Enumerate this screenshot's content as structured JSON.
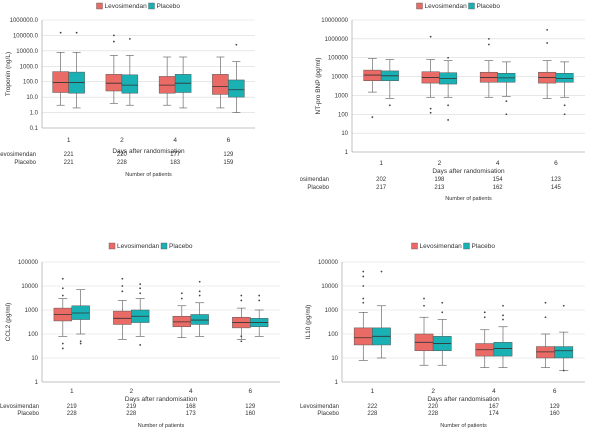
{
  "colors": {
    "levosimendan": "#ea6b66",
    "placebo": "#1ab1b4",
    "line": "#555555",
    "grid": "#d9d9d9"
  },
  "chart_data": [
    {
      "type": "boxplot",
      "ylabel": "Troponin (ng/L)",
      "xlabel": "Days after randomisation",
      "yscale": "log",
      "ylim": [
        0.1,
        1000000
      ],
      "yticks": [
        "0.1",
        "1.0",
        "10.0",
        "100.0",
        "1000.0",
        "10000.0",
        "100000.0",
        "1000000.0"
      ],
      "categories": [
        "1",
        "2",
        "4",
        "6"
      ],
      "legend": [
        "Levosimendan",
        "Placebo"
      ],
      "series": [
        {
          "name": "Levosimendan",
          "boxes": [
            {
              "min": 3,
              "q1": 20,
              "median": 90,
              "q3": 450,
              "max": 8000,
              "outliers": [
                150000
              ]
            },
            {
              "min": 4,
              "q1": 25,
              "median": 80,
              "q3": 300,
              "max": 5000,
              "outliers": [
                100000,
                40000
              ]
            },
            {
              "min": 3,
              "q1": 18,
              "median": 60,
              "q3": 220,
              "max": 4000,
              "outliers": []
            },
            {
              "min": 2,
              "q1": 15,
              "median": 50,
              "q3": 300,
              "max": 4000,
              "outliers": []
            }
          ]
        },
        {
          "name": "Placebo",
          "boxes": [
            {
              "min": 2,
              "q1": 18,
              "median": 90,
              "q3": 420,
              "max": 8000,
              "outliers": [
                150000
              ]
            },
            {
              "min": 3,
              "q1": 18,
              "median": 60,
              "q3": 280,
              "max": 5000,
              "outliers": [
                60000
              ]
            },
            {
              "min": 2,
              "q1": 20,
              "median": 80,
              "q3": 300,
              "max": 4000,
              "outliers": []
            },
            {
              "min": 1,
              "q1": 10,
              "median": 30,
              "q3": 130,
              "max": 2000,
              "outliers": [
                25000
              ]
            }
          ]
        }
      ],
      "counts_label": "Number of patients",
      "counts": [
        {
          "name": "Levosimendan",
          "values": [
            "221",
            "220",
            "177",
            "129"
          ]
        },
        {
          "name": "Placebo",
          "values": [
            "221",
            "228",
            "183",
            "159"
          ]
        }
      ]
    },
    {
      "type": "boxplot",
      "ylabel": "NT-pro BNP (pg/ml)",
      "xlabel": "Days after randomisation",
      "yscale": "log",
      "ylim": [
        1,
        10000000
      ],
      "yticks": [
        "1",
        "10",
        "100",
        "1000",
        "10000",
        "100000",
        "1000000",
        "10000000"
      ],
      "categories": [
        "1",
        "2",
        "4",
        "6"
      ],
      "legend": [
        "Levosimendan",
        "Placebo"
      ],
      "series": [
        {
          "name": "Levosimendan",
          "boxes": [
            {
              "min": 1500,
              "q1": 6000,
              "median": 12000,
              "q3": 22000,
              "max": 90000,
              "outliers": [
                70
              ]
            },
            {
              "min": 800,
              "q1": 4500,
              "median": 9000,
              "q3": 18000,
              "max": 80000,
              "outliers": [
                1300000,
                200,
                120
              ]
            },
            {
              "min": 800,
              "q1": 5000,
              "median": 9000,
              "q3": 17000,
              "max": 70000,
              "outliers": [
                1000000,
                500000
              ]
            },
            {
              "min": 700,
              "q1": 4500,
              "median": 9000,
              "q3": 17000,
              "max": 70000,
              "outliers": [
                3000000,
                600000
              ]
            }
          ]
        },
        {
          "name": "Placebo",
          "boxes": [
            {
              "min": 700,
              "q1": 6000,
              "median": 11000,
              "q3": 20000,
              "max": 80000,
              "outliers": [
                300
              ]
            },
            {
              "min": 800,
              "q1": 4000,
              "median": 8000,
              "q3": 16000,
              "max": 70000,
              "outliers": [
                100000,
                300,
                50
              ]
            },
            {
              "min": 900,
              "q1": 5000,
              "median": 8500,
              "q3": 15000,
              "max": 60000,
              "outliers": [
                100,
                500
              ]
            },
            {
              "min": 800,
              "q1": 5000,
              "median": 8000,
              "q3": 15000,
              "max": 60000,
              "outliers": [
                300,
                100
              ]
            }
          ]
        }
      ],
      "counts_label": "Number of patients",
      "counts": [
        {
          "name": "Levosimendan",
          "values": [
            "202",
            "198",
            "154",
            "123"
          ]
        },
        {
          "name": "Placebo",
          "values": [
            "217",
            "213",
            "162",
            "145"
          ]
        }
      ]
    },
    {
      "type": "boxplot",
      "ylabel": "CCL2 (pg/ml)",
      "xlabel": "Days after randomisation",
      "yscale": "log",
      "ylim": [
        1,
        100000
      ],
      "yticks": [
        "1",
        "10",
        "100",
        "1000",
        "10000",
        "100000"
      ],
      "categories": [
        "1",
        "2",
        "4",
        "6"
      ],
      "legend": [
        "Levosimendan",
        "Placebo"
      ],
      "series": [
        {
          "name": "Levosimendan",
          "boxes": [
            {
              "min": 80,
              "q1": 350,
              "median": 650,
              "q3": 1200,
              "max": 3000,
              "outliers": [
                20000,
                8000,
                4000,
                40,
                25
              ]
            },
            {
              "min": 60,
              "q1": 250,
              "median": 450,
              "q3": 900,
              "max": 2500,
              "outliers": [
                20000,
                10000,
                6000
              ]
            },
            {
              "min": 70,
              "q1": 200,
              "median": 320,
              "q3": 550,
              "max": 1500,
              "outliers": [
                5000,
                3000
              ]
            },
            {
              "min": 60,
              "q1": 180,
              "median": 300,
              "q3": 500,
              "max": 1200,
              "outliers": [
                4000,
                2500,
                80,
                50
              ]
            }
          ]
        },
        {
          "name": "Placebo",
          "boxes": [
            {
              "min": 100,
              "q1": 400,
              "median": 750,
              "q3": 1500,
              "max": 7000,
              "outliers": [
                50,
                40
              ]
            },
            {
              "min": 80,
              "q1": 300,
              "median": 550,
              "q3": 1000,
              "max": 3000,
              "outliers": [
                12000,
                8000,
                5000,
                35
              ]
            },
            {
              "min": 80,
              "q1": 250,
              "median": 380,
              "q3": 650,
              "max": 2000,
              "outliers": [
                15000,
                6000,
                4000
              ]
            },
            {
              "min": 80,
              "q1": 200,
              "median": 300,
              "q3": 450,
              "max": 1000,
              "outliers": [
                4000,
                2500
              ]
            }
          ]
        }
      ],
      "counts_label": "Number of patients",
      "counts": [
        {
          "name": "Levosimendan",
          "values": [
            "219",
            "219",
            "168",
            "129"
          ]
        },
        {
          "name": "Placebo",
          "values": [
            "228",
            "228",
            "173",
            "160"
          ]
        }
      ]
    },
    {
      "type": "boxplot",
      "ylabel": "IL10 (pg/ml)",
      "xlabel": "Days after randomisation",
      "yscale": "log",
      "ylim": [
        1,
        100000
      ],
      "yticks": [
        "1",
        "10",
        "100",
        "1000",
        "10000",
        "100000"
      ],
      "categories": [
        "1",
        "2",
        "4",
        "6"
      ],
      "legend": [
        "Levosimendan",
        "Placebo"
      ],
      "series": [
        {
          "name": "Levosimendan",
          "boxes": [
            {
              "min": 8,
              "q1": 35,
              "median": 70,
              "q3": 180,
              "max": 800,
              "outliers": [
                40000,
                25000,
                10000,
                3000,
                2000
              ]
            },
            {
              "min": 5,
              "q1": 20,
              "median": 45,
              "q3": 100,
              "max": 500,
              "outliers": [
                3000,
                1500
              ]
            },
            {
              "min": 4,
              "q1": 12,
              "median": 22,
              "q3": 40,
              "max": 150,
              "outliers": [
                800,
                500
              ]
            },
            {
              "min": 4,
              "q1": 10,
              "median": 18,
              "q3": 30,
              "max": 100,
              "outliers": [
                2000,
                500
              ]
            }
          ]
        },
        {
          "name": "Placebo",
          "boxes": [
            {
              "min": 10,
              "q1": 35,
              "median": 80,
              "q3": 180,
              "max": 1500,
              "outliers": [
                40000
              ]
            },
            {
              "min": 5,
              "q1": 20,
              "median": 40,
              "q3": 80,
              "max": 400,
              "outliers": [
                2000,
                800
              ]
            },
            {
              "min": 4,
              "q1": 12,
              "median": 25,
              "q3": 45,
              "max": 200,
              "outliers": [
                1500,
                600,
                400
              ]
            },
            {
              "min": 3,
              "q1": 10,
              "median": 20,
              "q3": 30,
              "max": 120,
              "outliers": [
                1500,
                3
              ]
            }
          ]
        }
      ],
      "counts_label": "Number of patients",
      "counts": [
        {
          "name": "Levosimendan",
          "values": [
            "222",
            "220",
            "167",
            "129"
          ]
        },
        {
          "name": "Placebo",
          "values": [
            "228",
            "228",
            "174",
            "160"
          ]
        }
      ]
    }
  ]
}
